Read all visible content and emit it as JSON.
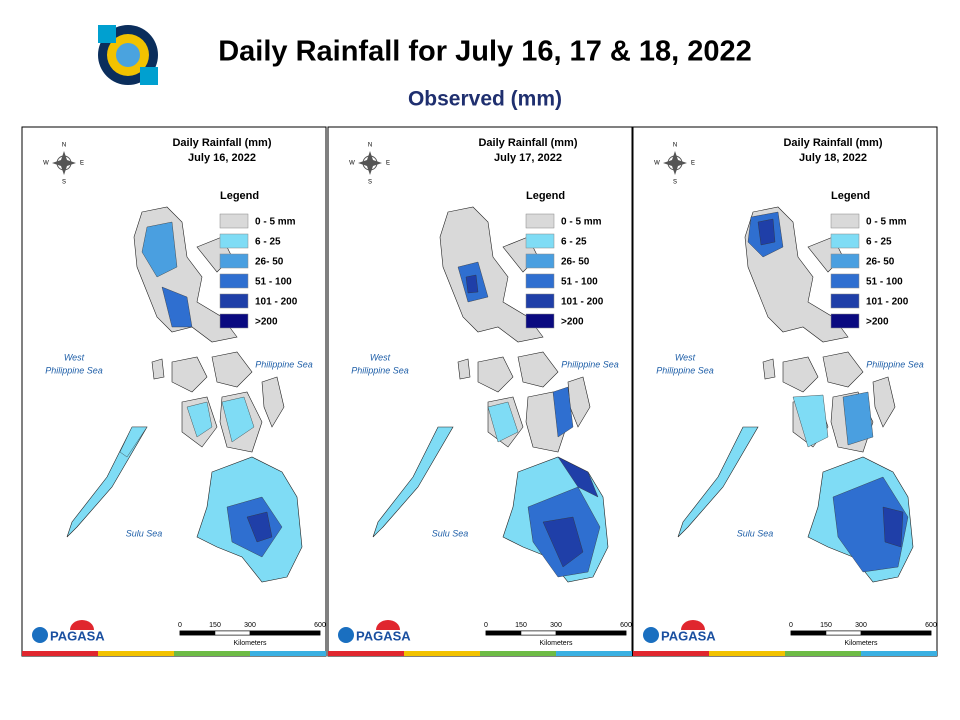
{
  "header": {
    "title": "Daily Rainfall for July 16, 17 & 18, 2022",
    "subtitle": "Observed (mm)"
  },
  "panels": [
    {
      "title": "Daily Rainfall (mm)",
      "date": "July 16, 2022"
    },
    {
      "title": "Daily Rainfall (mm)",
      "date": "July 17, 2022"
    },
    {
      "title": "Daily Rainfall (mm)",
      "date": "July 18, 2022"
    }
  ],
  "legend": {
    "title": "Legend",
    "items": [
      {
        "label": "0 - 5 mm",
        "color": "#d9d9d9"
      },
      {
        "label": "6 - 25",
        "color": "#7fdcf5"
      },
      {
        "label": "26- 50",
        "color": "#4a9fe0"
      },
      {
        "label": "51 - 100",
        "color": "#2f6fd0"
      },
      {
        "label": "101 - 200",
        "color": "#1f3fa8"
      },
      {
        "label": ">200",
        "color": "#0a0a80"
      }
    ]
  },
  "seas": {
    "west_line1": "West",
    "west_line2": "Philippine Sea",
    "east": "Philippine Sea",
    "south": "Sulu Sea"
  },
  "compass": {
    "n": "N",
    "e": "E",
    "s": "S",
    "w": "W"
  },
  "scale": {
    "ticks": [
      0,
      150,
      300,
      600
    ],
    "unit": "Kilometers"
  },
  "logo": {
    "name": "PAGASA"
  }
}
